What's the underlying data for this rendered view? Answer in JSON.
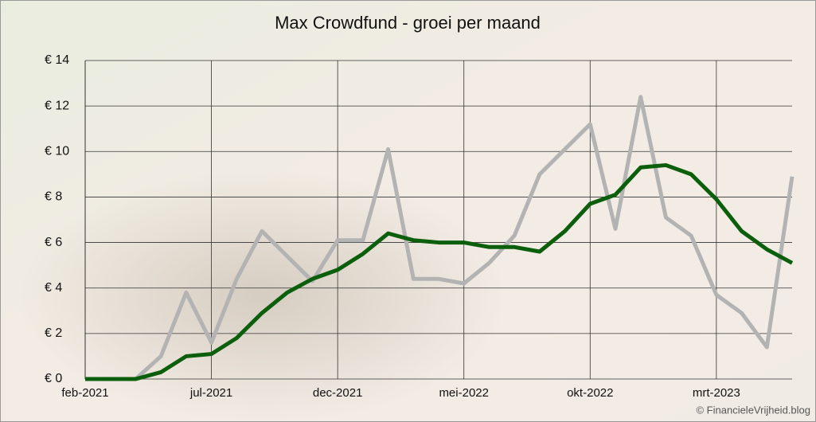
{
  "chart_data": {
    "type": "line",
    "title": "Max Crowdfund - groei per maand",
    "categories": [
      "feb-2021",
      null,
      null,
      null,
      null,
      "jul-2021",
      null,
      null,
      null,
      null,
      "dec-2021",
      null,
      null,
      null,
      null,
      "mei-2022",
      null,
      null,
      null,
      null,
      "okt-2022",
      null,
      null,
      null,
      null,
      "mrt-2023",
      null,
      null,
      null
    ],
    "series": [
      {
        "color": "#b3b3b3",
        "values": [
          0,
          0,
          0,
          1.0,
          3.8,
          1.6,
          4.4,
          6.5,
          5.4,
          4.3,
          6.1,
          6.1,
          10.1,
          4.4,
          4.4,
          4.2,
          5.1,
          6.3,
          9.0,
          10.1,
          11.2,
          6.6,
          12.4,
          7.1,
          6.3,
          3.7,
          2.9,
          1.4,
          8.9
        ]
      },
      {
        "color": "#0b5e0b",
        "values": [
          0,
          0,
          0,
          0.3,
          1.0,
          1.1,
          1.8,
          2.9,
          3.8,
          4.4,
          4.8,
          5.5,
          6.4,
          6.1,
          6.0,
          6.0,
          5.8,
          5.8,
          5.6,
          6.5,
          7.7,
          8.1,
          9.3,
          9.4,
          9.0,
          7.9,
          6.5,
          5.7,
          5.1
        ]
      }
    ],
    "ylim": [
      0,
      14
    ],
    "yticks": [
      {
        "value": 0,
        "label": "€ 0"
      },
      {
        "value": 2,
        "label": "€ 2"
      },
      {
        "value": 4,
        "label": "€ 4"
      },
      {
        "value": 6,
        "label": "€ 6"
      },
      {
        "value": 8,
        "label": "€ 8"
      },
      {
        "value": 10,
        "label": "€ 10"
      },
      {
        "value": 12,
        "label": "€ 12"
      },
      {
        "value": 14,
        "label": "€ 14"
      }
    ],
    "grid": true,
    "annotation": "© FinancieleVrijheid.blog"
  }
}
